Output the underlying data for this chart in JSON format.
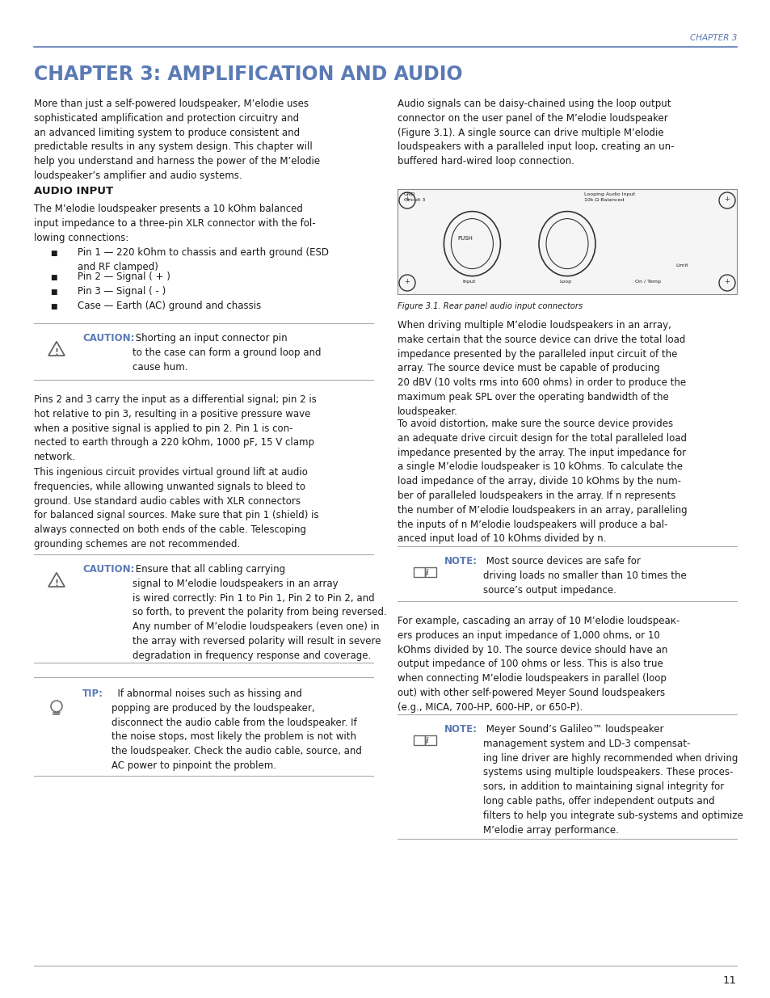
{
  "page_header": "CHAPTER 3",
  "chapter_title": "CHAPTER 3: AMPLIFICATION AND AUDIO",
  "header_line_color": "#7a8db3",
  "chapter_title_color": "#5b7ab5",
  "body_text_color": "#1a1a1a",
  "background_color": "#ffffff",
  "page_number": "11",
  "intro_left": "More than just a self-powered loudspeaker, M’elodie uses\nsophisticated amplification and protection circuitry and\nan advanced limiting system to produce consistent and\npredictable results in any system design. This chapter will\nhelp you understand and harness the power of the M’elodie\nloudspeaker’s amplifier and audio systems.",
  "intro_right": "Audio signals can be daisy-chained using the loop output\nconnector on the user panel of the M’elodie loudspeaker\n(Figure 3.1). A single source can drive multiple M’elodie\nloudspeakers with a paralleled input loop, creating an un-\nbuffered hard-wired loop connection.",
  "audio_input_heading": "AUDIO INPUT",
  "audio_input_para": "The M’elodie loudspeaker presents a 10 kOhm balanced\ninput impedance to a three-pin XLR connector with the fol-\nlowing connections:",
  "bullet1": "Pin 1 — 220 kOhm to chassis and earth ground (ESD\nand RF clamped)",
  "bullet2": "Pin 2 — Signal ( + )",
  "bullet3": "Pin 3 — Signal ( - )",
  "bullet4": "Case — Earth (AC) ground and chassis",
  "caution1_label": "CAUTION:",
  "caution1_body": " Shorting an input connector pin\nto the case can form a ground loop and\ncause hum.",
  "para_diff": "Pins 2 and 3 carry the input as a differential signal; pin 2 is\nhot relative to pin 3, resulting in a positive pressure wave\nwhen a positive signal is applied to pin 2. Pin 1 is con-\nnected to earth through a 220 kOhm, 1000 pF, 15 V clamp\nnetwork.",
  "para_ingenious": "This ingenious circuit provides virtual ground lift at audio\nfrequencies, while allowing unwanted signals to bleed to\nground. Use standard audio cables with XLR connectors\nfor balanced signal sources. Make sure that pin 1 (shield) is\nalways connected on both ends of the cable. Telescoping\ngrounding schemes are not recommended.",
  "caution2_label": "CAUTION:",
  "caution2_body": " Ensure that all cabling carrying\nsignal to M’elodie loudspeakers in an array\nis wired correctly: Pin 1 to Pin 1, Pin 2 to Pin 2, and\nso forth, to prevent the polarity from being reversed.\nAny number of M’elodie loudspeakers (even one) in\nthe array with reversed polarity will result in severe\ndegradation in frequency response and coverage.",
  "tip_label": "TIP:",
  "tip_body": "  If abnormal noises such as hissing and\npopping are produced by the loudspeaker,\ndisconnect the audio cable from the loudspeaker. If\nthe noise stops, most likely the problem is not with\nthe loudspeaker. Check the audio cable, source, and\nAC power to pinpoint the problem.",
  "figure_caption": "Figure 3.1. Rear panel audio input connectors",
  "right_para1": "When driving multiple M’elodie loudspeakers in an array,\nmake certain that the source device can drive the total load\nimpedance presented by the paralleled input circuit of the\narray. The source device must be capable of producing\n20 dBV (10 volts rms into 600 ohms) in order to produce the\nmaximum peak SPL over the operating bandwidth of the\nloudspeaker.",
  "right_para2": "To avoid distortion, make sure the source device provides\nan adequate drive circuit design for the total paralleled load\nimpedance presented by the array. The input impedance for\na single M’elodie loudspeaker is 10 kOhms. To calculate the\nload impedance of the array, divide 10 kOhms by the num-\nber of paralleled loudspeakers in the array. If n represents\nthe number of M’elodie loudspeakers in an array, paralleling\nthe inputs of n M’elodie loudspeakers will produce a bal-\nanced input load of 10 kOhms divided by n.",
  "note1_label": "NOTE:",
  "note1_body": " Most source devices are safe for\ndriving loads no smaller than 10 times the\nsource’s output impedance.",
  "right_para3": "For example, cascading an array of 10 M’elodie loudspeак-\ners produces an input impedance of 1,000 ohms, or 10\nkOhms divided by 10. The source device should have an\noutput impedance of 100 ohms or less. This is also true\nwhen connecting M’elodie loudspeakers in parallel (loop\nout) with other self-powered Meyer Sound loudspeakers\n(e.g., MICA, 700-HP, 600-HP, or 650-P).",
  "note2_label": "NOTE:",
  "note2_body": " Meyer Sound’s Galileo™ loudspeaker\nmanagement system and LD-3 compensat-\ning line driver are highly recommended when driving\nsystems using multiple loudspeakers. These proces-\nsors, in addition to maintaining signal integrity for\nlong cable paths, offer independent outputs and\nfilters to help you integrate sub-systems and optimize\nM’elodie array performance.",
  "accent_color": "#5b7ab5",
  "sep_color": "#aaaaaa",
  "icon_color": "#666666"
}
